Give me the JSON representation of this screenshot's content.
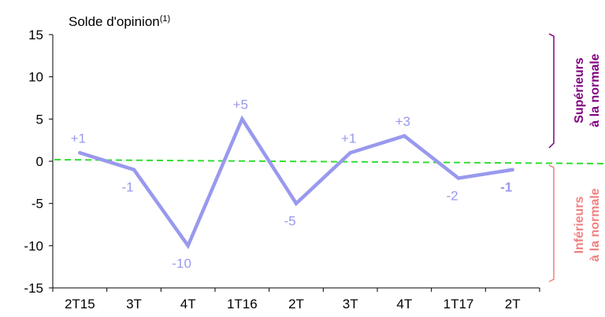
{
  "chart_data": {
    "type": "line",
    "title": "Solde d'opinion",
    "title_superscript": "(1)",
    "categories": [
      "2T15",
      "3T",
      "4T",
      "1T16",
      "2T",
      "3T",
      "4T",
      "1T17",
      "2T"
    ],
    "series": [
      {
        "values": [
          1,
          -1,
          -10,
          5,
          -5,
          1,
          3,
          -2,
          -1
        ],
        "color": "#9999ee"
      }
    ],
    "data_labels": [
      "+1",
      "-1",
      "-10",
      "+5",
      "-5",
      "+1",
      "+3",
      "-2",
      "-1"
    ],
    "ylim": [
      -15,
      15
    ],
    "yticks": [
      15,
      10,
      5,
      0,
      -5,
      -10,
      -15
    ],
    "reference_line": {
      "value": 0,
      "style": "dashed",
      "color": "#33dd33"
    },
    "grid": false,
    "annotations": {
      "above": {
        "line1": "Supérieurs",
        "line2": "à la normale",
        "color": "#800080"
      },
      "below": {
        "line1": "Inférieurs",
        "line2": "à la normale",
        "color": "#f08080"
      }
    }
  }
}
